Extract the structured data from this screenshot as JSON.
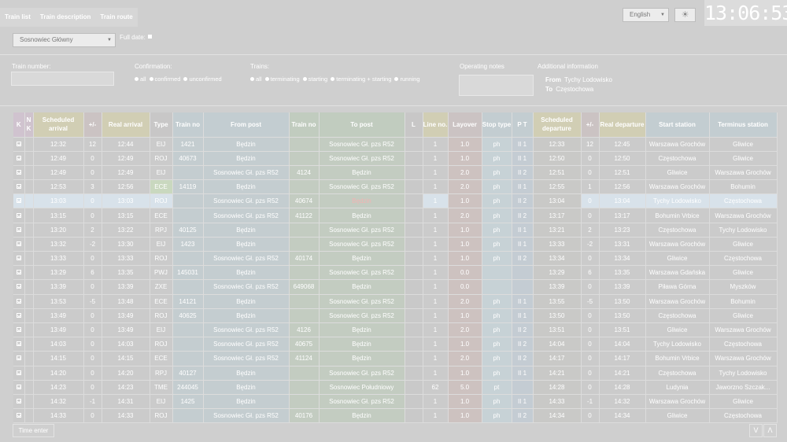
{
  "tabs": [
    "Train list",
    "Train description",
    "Train route"
  ],
  "language": {
    "selected": "English"
  },
  "clock": "13:06:53",
  "station": {
    "selected": "Sosnowiec Główny"
  },
  "full_date_label": "Full date:",
  "train_number_label": "Train number:",
  "confirmation": {
    "label": "Confirmation:",
    "options": [
      "all",
      "confirmed",
      "unconfirmed"
    ]
  },
  "trains": {
    "label": "Trains:",
    "options": [
      "all",
      "terminating",
      "starting",
      "terminating + starting",
      "running"
    ]
  },
  "operating_notes_label": "Operating notes",
  "additional_info": {
    "label": "Additional information",
    "from_key": "From",
    "from": "Tychy Lodowisko",
    "to_key": "To",
    "to": "Częstochowa"
  },
  "columns": [
    "K",
    "N K",
    "Scheduled arrival",
    "+/-",
    "Real arrival",
    "Type",
    "Train no",
    "From post",
    "Train no",
    "To post",
    "L",
    "Line no.",
    "Layover",
    "Stop type",
    "P T",
    "Scheduled departure",
    "+/-",
    "Real departure",
    "Start station",
    "Terminus station"
  ],
  "rows": [
    [
      "12:32",
      "12",
      "12:44",
      "EIJ",
      "1421",
      "Będzin",
      "",
      "Sosnowiec Gł. pzs R52",
      "1",
      "1.0",
      "ph",
      "II 1",
      "12:33",
      "12",
      "12:45",
      "Warszawa Grochów",
      "Gliwice"
    ],
    [
      "12:49",
      "0",
      "12:49",
      "ROJ",
      "40673",
      "Będzin",
      "",
      "Sosnowiec Gł. pzs R52",
      "1",
      "1.0",
      "ph",
      "II 1",
      "12:50",
      "0",
      "12:50",
      "Częstochowa",
      "Gliwice"
    ],
    [
      "12:49",
      "0",
      "12:49",
      "EIJ",
      "",
      "Sosnowiec Gł. pzs R52",
      "4124",
      "Będzin",
      "1",
      "2.0",
      "ph",
      "II 2",
      "12:51",
      "0",
      "12:51",
      "Gliwice",
      "Warszawa Grochów"
    ],
    [
      "12:53",
      "3",
      "12:56",
      "ECE",
      "14119",
      "Będzin",
      "",
      "Sosnowiec Gł. pzs R52",
      "1",
      "2.0",
      "ph",
      "II 1",
      "12:55",
      "1",
      "12:56",
      "Warszawa Grochów",
      "Bohumin"
    ],
    [
      "13:03",
      "0",
      "13:03",
      "ROJ",
      "",
      "Sosnowiec Gł. pzs R52",
      "40674",
      "Będzin",
      "1",
      "1.0",
      "ph",
      "II 2",
      "13:04",
      "0",
      "13:04",
      "Tychy Lodowisko",
      "Częstochowa"
    ],
    [
      "13:15",
      "0",
      "13:15",
      "ECE",
      "",
      "Sosnowiec Gł. pzs R52",
      "41122",
      "Będzin",
      "1",
      "2.0",
      "ph",
      "II 2",
      "13:17",
      "0",
      "13:17",
      "Bohumin Vrbice",
      "Warszawa Grochów"
    ],
    [
      "13:20",
      "2",
      "13:22",
      "RPJ",
      "40125",
      "Będzin",
      "",
      "Sosnowiec Gł. pzs R52",
      "1",
      "1.0",
      "ph",
      "II 1",
      "13:21",
      "2",
      "13:23",
      "Częstochowa",
      "Tychy Lodowisko"
    ],
    [
      "13:32",
      "-2",
      "13:30",
      "EIJ",
      "1423",
      "Będzin",
      "",
      "Sosnowiec Gł. pzs R52",
      "1",
      "1.0",
      "ph",
      "II 1",
      "13:33",
      "-2",
      "13:31",
      "Warszawa Grochów",
      "Gliwice"
    ],
    [
      "13:33",
      "0",
      "13:33",
      "ROJ",
      "",
      "Sosnowiec Gł. pzs R52",
      "40174",
      "Będzin",
      "1",
      "1.0",
      "ph",
      "II 2",
      "13:34",
      "0",
      "13:34",
      "Gliwice",
      "Częstochowa"
    ],
    [
      "13:29",
      "6",
      "13:35",
      "PWJ",
      "145031",
      "Będzin",
      "",
      "Sosnowiec Gł. pzs R52",
      "1",
      "0.0",
      "",
      "",
      "13:29",
      "6",
      "13:35",
      "Warszawa Gdańska",
      "Gliwice"
    ],
    [
      "13:39",
      "0",
      "13:39",
      "ZXE",
      "",
      "Sosnowiec Gł. pzs R52",
      "649068",
      "Będzin",
      "1",
      "0.0",
      "",
      "",
      "13:39",
      "0",
      "13:39",
      "Piława Górna",
      "Myszków"
    ],
    [
      "13:53",
      "-5",
      "13:48",
      "ECE",
      "14121",
      "Będzin",
      "",
      "Sosnowiec Gł. pzs R52",
      "1",
      "2.0",
      "ph",
      "II 1",
      "13:55",
      "-5",
      "13:50",
      "Warszawa Grochów",
      "Bohumin"
    ],
    [
      "13:49",
      "0",
      "13:49",
      "ROJ",
      "40625",
      "Będzin",
      "",
      "Sosnowiec Gł. pzs R52",
      "1",
      "1.0",
      "ph",
      "II 1",
      "13:50",
      "0",
      "13:50",
      "Częstochowa",
      "Gliwice"
    ],
    [
      "13:49",
      "0",
      "13:49",
      "EIJ",
      "",
      "Sosnowiec Gł. pzs R52",
      "4126",
      "Będzin",
      "1",
      "2.0",
      "ph",
      "II 2",
      "13:51",
      "0",
      "13:51",
      "Gliwice",
      "Warszawa Grochów"
    ],
    [
      "14:03",
      "0",
      "14:03",
      "ROJ",
      "",
      "Sosnowiec Gł. pzs R52",
      "40675",
      "Będzin",
      "1",
      "1.0",
      "ph",
      "II 2",
      "14:04",
      "0",
      "14:04",
      "Tychy Lodowisko",
      "Częstochowa"
    ],
    [
      "14:15",
      "0",
      "14:15",
      "ECE",
      "",
      "Sosnowiec Gł. pzs R52",
      "41124",
      "Będzin",
      "1",
      "2.0",
      "ph",
      "II 2",
      "14:17",
      "0",
      "14:17",
      "Bohumin Vrbice",
      "Warszawa Grochów"
    ],
    [
      "14:20",
      "0",
      "14:20",
      "RPJ",
      "40127",
      "Będzin",
      "",
      "Sosnowiec Gł. pzs R52",
      "1",
      "1.0",
      "ph",
      "II 1",
      "14:21",
      "0",
      "14:21",
      "Częstochowa",
      "Tychy Lodowisko"
    ],
    [
      "14:23",
      "0",
      "14:23",
      "TME",
      "244045",
      "Będzin",
      "",
      "Sosnowiec Południowy",
      "62",
      "5.0",
      "pt",
      "",
      "14:28",
      "0",
      "14:28",
      "Ludynia",
      "Jaworzno Szczak..."
    ],
    [
      "14:32",
      "-1",
      "14:31",
      "EIJ",
      "1425",
      "Będzin",
      "",
      "Sosnowiec Gł. pzs R52",
      "1",
      "1.0",
      "ph",
      "II 1",
      "14:33",
      "-1",
      "14:32",
      "Warszawa Grochów",
      "Gliwice"
    ],
    [
      "14:33",
      "0",
      "14:33",
      "ROJ",
      "",
      "Sosnowiec Gł. pzs R52",
      "40176",
      "Będzin",
      "1",
      "1.0",
      "ph",
      "II 2",
      "14:34",
      "0",
      "14:34",
      "Gliwice",
      "Częstochowa"
    ]
  ],
  "selected_row": 4,
  "green_type_row": 3,
  "empty_stop_rows": [
    9,
    10
  ],
  "time_enter_label": "Time enter",
  "nav": {
    "down": "V",
    "up": "Λ"
  },
  "icons": {
    "theme": "sun-icon",
    "dropdown": "chevron-down-icon",
    "check": "check-icon"
  }
}
